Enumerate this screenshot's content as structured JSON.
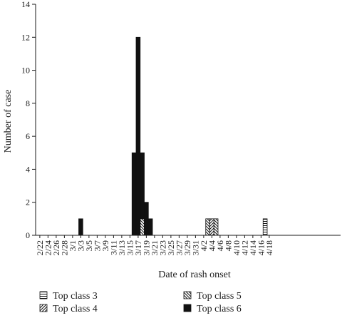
{
  "chart_data": {
    "type": "bar",
    "stacked": true,
    "xlabel": "Date of rash onset",
    "ylabel": "Number of case",
    "ylim": [
      0,
      14
    ],
    "yticks": [
      0,
      2,
      4,
      6,
      8,
      10,
      12,
      14
    ],
    "x_labels": [
      "2/22",
      "2/24",
      "2/26",
      "2/28",
      "3/1",
      "3/3",
      "3/5",
      "3/7",
      "3/9",
      "3/11",
      "3/13",
      "3/15",
      "3/17",
      "3/19",
      "3/21",
      "3/23",
      "3/25",
      "3/27",
      "3/29",
      "3/31",
      "4/2",
      "4/4",
      "4/6",
      "4/8",
      "4/10",
      "4/12",
      "4/14",
      "4/16",
      "4/18"
    ],
    "grid": false,
    "legend_position": "bottom",
    "series": [
      {
        "name": "Top class 3",
        "pattern": "horizontal-lines",
        "color": "#111111",
        "points": [
          {
            "date": "4/17",
            "value": 1
          }
        ]
      },
      {
        "name": "Top class 4",
        "pattern": "diagonal-lines",
        "color": "#111111",
        "points": [
          {
            "date": "4/4",
            "value": 1
          }
        ]
      },
      {
        "name": "Top class 5",
        "pattern": "back-diagonal-lines",
        "color": "#111111",
        "points": [
          {
            "date": "3/18",
            "value": 1
          },
          {
            "date": "4/3",
            "value": 1
          },
          {
            "date": "4/5",
            "value": 1
          }
        ]
      },
      {
        "name": "Top class 6",
        "pattern": "solid",
        "color": "#111111",
        "points": [
          {
            "date": "3/3",
            "value": 1
          },
          {
            "date": "3/16",
            "value": 5
          },
          {
            "date": "3/17",
            "value": 12
          },
          {
            "date": "3/18",
            "value": 4
          },
          {
            "date": "3/19",
            "value": 2
          },
          {
            "date": "3/20",
            "value": 1
          }
        ]
      }
    ]
  }
}
